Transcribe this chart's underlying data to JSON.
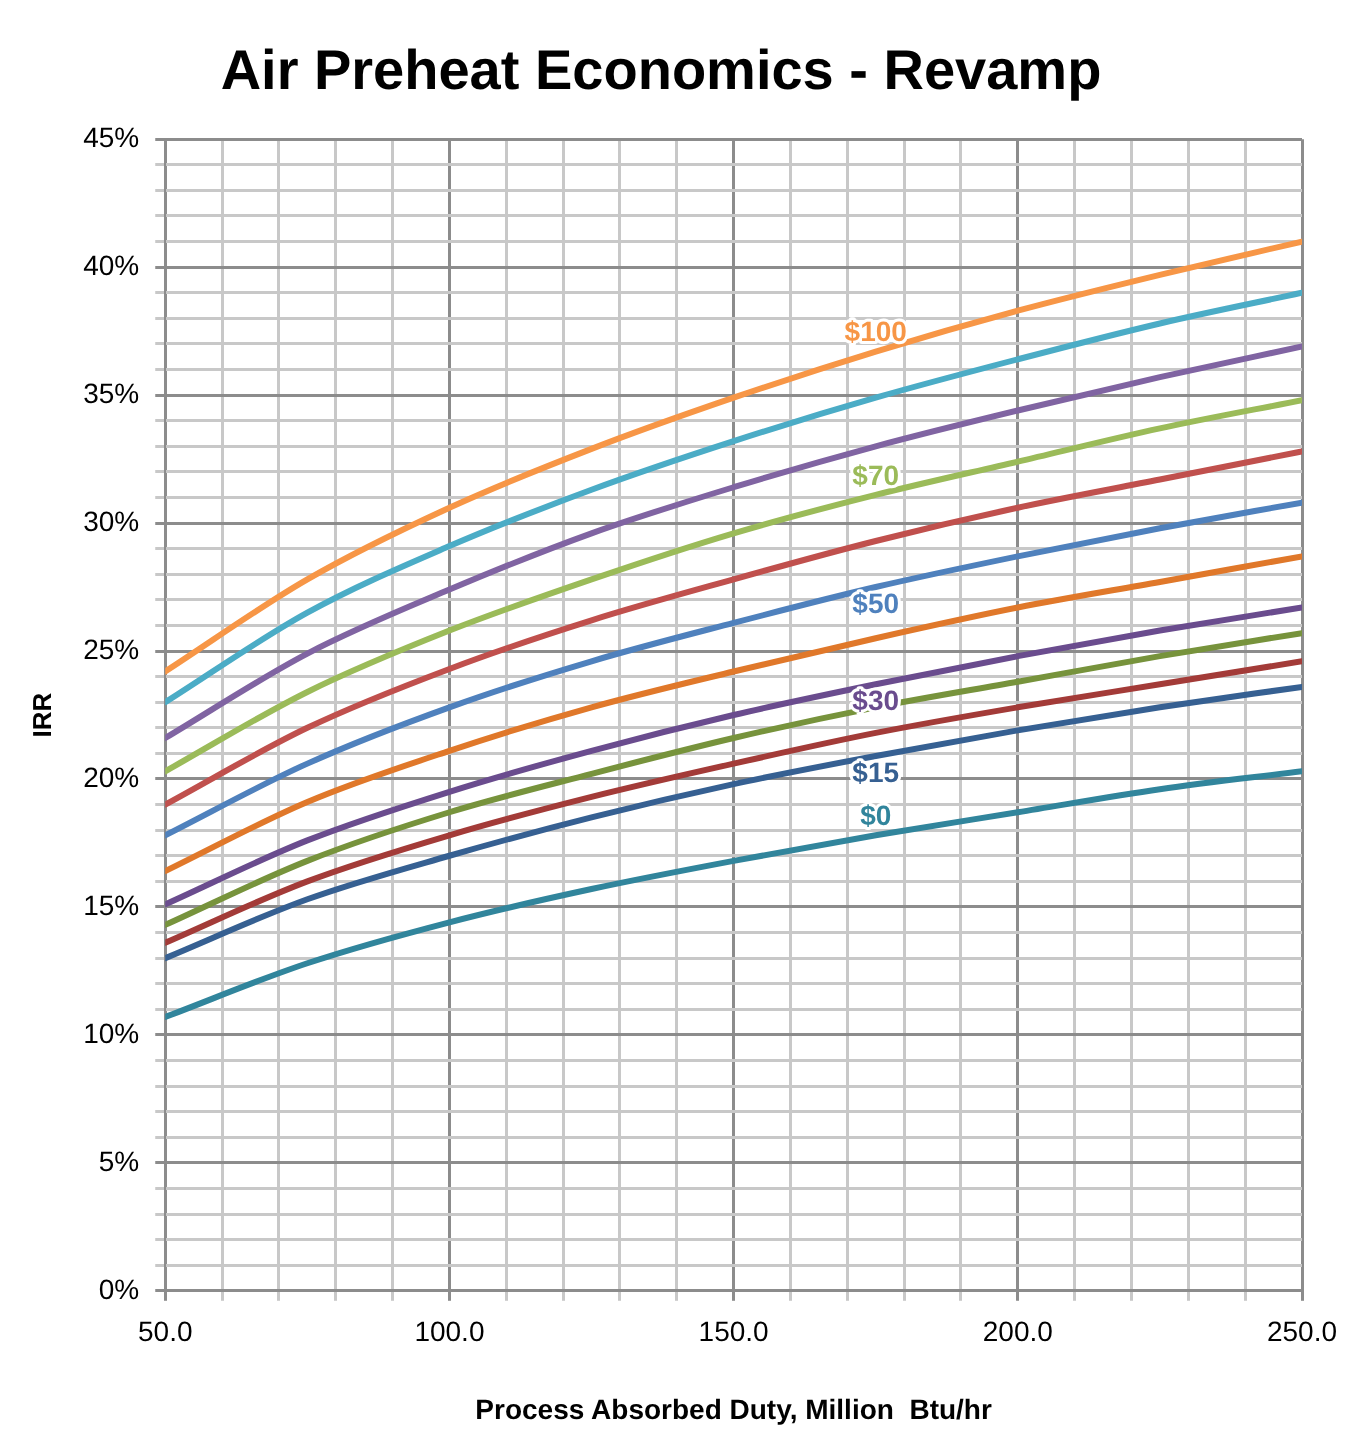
{
  "chart_data": {
    "type": "line",
    "title": "Air Preheat Economics - Revamp",
    "xlabel": "Process Absorbed Duty, Million  Btu/hr",
    "ylabel": "IRR",
    "x": [
      50,
      75,
      100,
      125,
      150,
      175,
      200,
      225,
      250
    ],
    "series": [
      {
        "name": "$100",
        "color": "#f79646",
        "values": [
          24.2,
          27.8,
          30.6,
          32.9,
          34.9,
          36.7,
          38.3,
          39.7,
          41.0
        ]
      },
      {
        "color": "#4bacc6",
        "values": [
          23.0,
          26.5,
          29.1,
          31.3,
          33.2,
          34.9,
          36.4,
          37.8,
          39.0
        ]
      },
      {
        "color": "#8064a2",
        "values": [
          21.6,
          24.9,
          27.4,
          29.6,
          31.4,
          33.0,
          34.4,
          35.7,
          36.9
        ]
      },
      {
        "name": "$70",
        "color": "#9bbb59",
        "values": [
          20.3,
          23.4,
          25.8,
          27.8,
          29.6,
          31.1,
          32.4,
          33.7,
          34.8
        ]
      },
      {
        "color": "#c0504d",
        "values": [
          19.0,
          22.0,
          24.3,
          26.2,
          27.8,
          29.3,
          30.6,
          31.7,
          32.8
        ]
      },
      {
        "name": "$50",
        "color": "#4f81bd",
        "values": [
          17.8,
          20.6,
          22.8,
          24.6,
          26.1,
          27.5,
          28.7,
          29.8,
          30.8
        ]
      },
      {
        "color": "#e0782a",
        "values": [
          16.4,
          19.1,
          21.1,
          22.8,
          24.2,
          25.5,
          26.7,
          27.7,
          28.7
        ]
      },
      {
        "name": "$30",
        "color": "#6a4c8e",
        "values": [
          15.1,
          17.6,
          19.5,
          21.1,
          22.5,
          23.7,
          24.8,
          25.8,
          26.7
        ]
      },
      {
        "color": "#77933c",
        "values": [
          14.3,
          16.8,
          18.7,
          20.2,
          21.6,
          22.8,
          23.8,
          24.8,
          25.7
        ]
      },
      {
        "color": "#a33b38",
        "values": [
          13.6,
          16.0,
          17.8,
          19.3,
          20.6,
          21.8,
          22.8,
          23.7,
          24.6
        ]
      },
      {
        "name": "$15",
        "color": "#366092",
        "values": [
          13.0,
          15.3,
          17.0,
          18.5,
          19.8,
          20.9,
          21.9,
          22.8,
          23.6
        ]
      },
      {
        "name": "$0",
        "color": "#31859c",
        "values": [
          10.7,
          12.8,
          14.4,
          15.7,
          16.8,
          17.8,
          18.7,
          19.6,
          20.3
        ]
      }
    ],
    "xlim": [
      50,
      250
    ],
    "xticks": [
      {
        "value": 50,
        "label": "50.0"
      },
      {
        "value": 60,
        "label": null
      },
      {
        "value": 70,
        "label": null
      },
      {
        "value": 80,
        "label": null
      },
      {
        "value": 90,
        "label": null
      },
      {
        "value": 100,
        "label": "100.0"
      },
      {
        "value": 110,
        "label": null
      },
      {
        "value": 120,
        "label": null
      },
      {
        "value": 130,
        "label": null
      },
      {
        "value": 140,
        "label": null
      },
      {
        "value": 150,
        "label": "150.0"
      },
      {
        "value": 160,
        "label": null
      },
      {
        "value": 170,
        "label": null
      },
      {
        "value": 180,
        "label": null
      },
      {
        "value": 190,
        "label": null
      },
      {
        "value": 200,
        "label": "200.0"
      },
      {
        "value": 210,
        "label": null
      },
      {
        "value": 220,
        "label": null
      },
      {
        "value": 230,
        "label": null
      },
      {
        "value": 240,
        "label": null
      },
      {
        "value": 250,
        "label": "250.0"
      }
    ],
    "ylim": [
      0,
      45
    ],
    "yticks": [
      {
        "value": 0,
        "label": "0%"
      },
      {
        "value": 1,
        "label": null
      },
      {
        "value": 2,
        "label": null
      },
      {
        "value": 3,
        "label": null
      },
      {
        "value": 4,
        "label": null
      },
      {
        "value": 5,
        "label": "5%"
      },
      {
        "value": 6,
        "label": null
      },
      {
        "value": 7,
        "label": null
      },
      {
        "value": 8,
        "label": null
      },
      {
        "value": 9,
        "label": null
      },
      {
        "value": 10,
        "label": "10%"
      },
      {
        "value": 11,
        "label": null
      },
      {
        "value": 12,
        "label": null
      },
      {
        "value": 13,
        "label": null
      },
      {
        "value": 14,
        "label": null
      },
      {
        "value": 15,
        "label": "15%"
      },
      {
        "value": 16,
        "label": null
      },
      {
        "value": 17,
        "label": null
      },
      {
        "value": 18,
        "label": null
      },
      {
        "value": 19,
        "label": null
      },
      {
        "value": 20,
        "label": "20%"
      },
      {
        "value": 21,
        "label": null
      },
      {
        "value": 22,
        "label": null
      },
      {
        "value": 23,
        "label": null
      },
      {
        "value": 24,
        "label": null
      },
      {
        "value": 25,
        "label": "25%"
      },
      {
        "value": 26,
        "label": null
      },
      {
        "value": 27,
        "label": null
      },
      {
        "value": 28,
        "label": null
      },
      {
        "value": 29,
        "label": null
      },
      {
        "value": 30,
        "label": "30%"
      },
      {
        "value": 31,
        "label": null
      },
      {
        "value": 32,
        "label": null
      },
      {
        "value": 33,
        "label": null
      },
      {
        "value": 34,
        "label": null
      },
      {
        "value": 35,
        "label": "35%"
      },
      {
        "value": 36,
        "label": null
      },
      {
        "value": 37,
        "label": null
      },
      {
        "value": 38,
        "label": null
      },
      {
        "value": 39,
        "label": null
      },
      {
        "value": 40,
        "label": "40%"
      },
      {
        "value": 41,
        "label": null
      },
      {
        "value": 42,
        "label": null
      },
      {
        "value": 43,
        "label": null
      },
      {
        "value": 44,
        "label": null
      },
      {
        "value": 45,
        "label": "45%"
      }
    ],
    "grid": true,
    "legend": false,
    "marker": "none",
    "line_style": "solid"
  }
}
